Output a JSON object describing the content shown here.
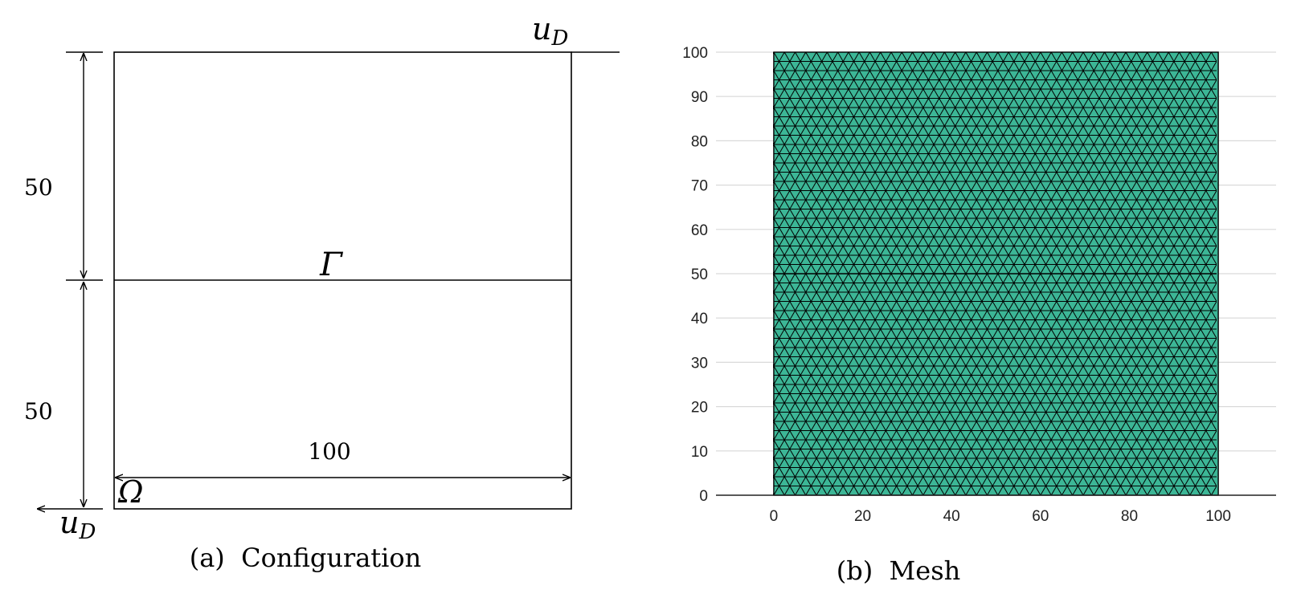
{
  "configuration": {
    "caption": "(a)  Configuration",
    "top_height_label": "50",
    "bottom_height_label": "50",
    "width_label": "100",
    "interface_label": "Γ",
    "domain_label": "Ω",
    "top_bc_label": "u",
    "top_bc_sub": "D",
    "bottom_bc_label": "u",
    "bottom_bc_sub": "D"
  },
  "mesh": {
    "caption": "(b)  Mesh",
    "fill_color": "#3cb696",
    "edge_color": "#000000",
    "grid_color": "#d9d9d9",
    "x_ticks": [
      "0",
      "20",
      "40",
      "60",
      "80",
      "100"
    ],
    "y_ticks": [
      "0",
      "10",
      "20",
      "30",
      "40",
      "50",
      "60",
      "70",
      "80",
      "90",
      "100"
    ],
    "xlim": [
      -13,
      113
    ],
    "ylim": [
      0,
      100
    ]
  }
}
